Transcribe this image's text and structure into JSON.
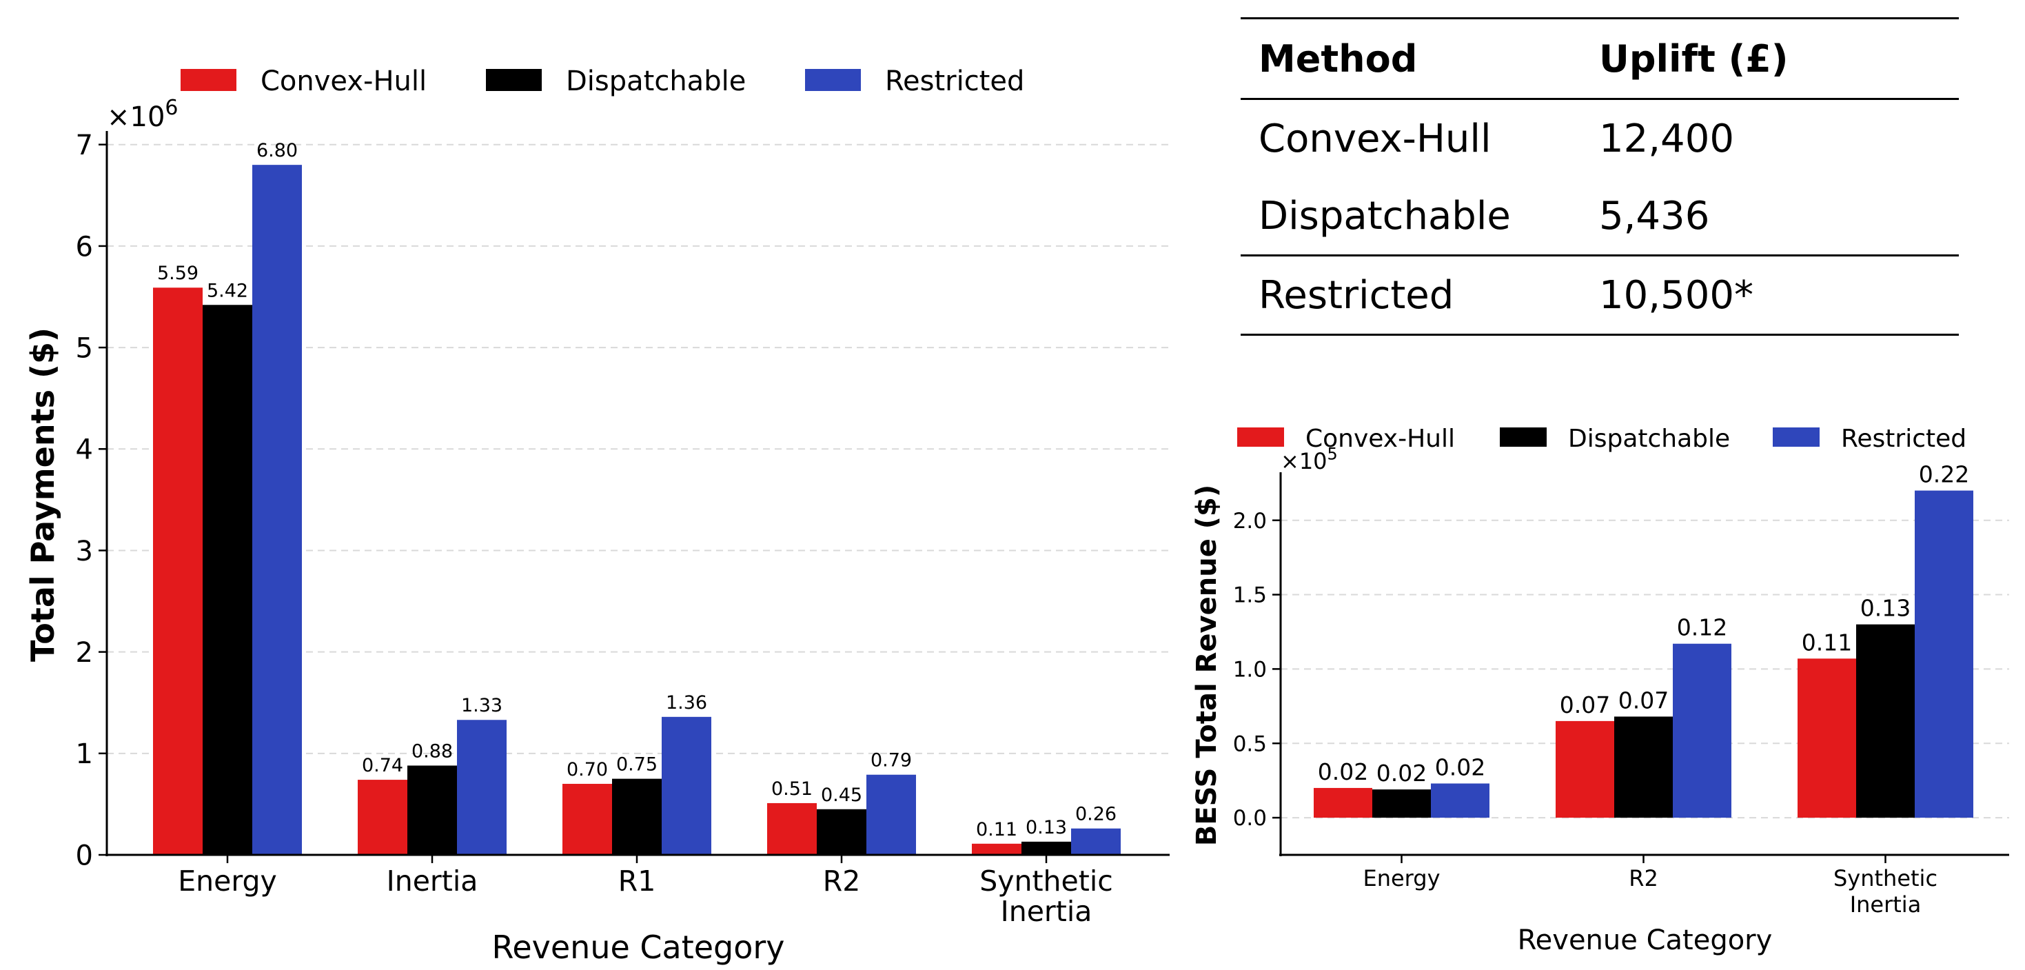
{
  "chart_data": [
    {
      "type": "bar",
      "categories": [
        "Energy",
        "Inertia",
        "R1",
        "R2",
        "Synthetic\nInertia"
      ],
      "series": [
        {
          "name": "Convex-Hull",
          "values": [
            5.59,
            0.74,
            0.7,
            0.51,
            0.11
          ]
        },
        {
          "name": "Dispatchable",
          "values": [
            5.42,
            0.88,
            0.75,
            0.45,
            0.13
          ]
        },
        {
          "name": "Restricted",
          "values": [
            6.8,
            1.33,
            1.36,
            0.79,
            0.26
          ]
        }
      ],
      "data_labels": [
        [
          "5.59",
          "0.74",
          "0.70",
          "0.51",
          "0.11"
        ],
        [
          "5.42",
          "0.88",
          "0.75",
          "0.45",
          "0.13"
        ],
        [
          "6.80",
          "1.33",
          "1.36",
          "0.79",
          "0.26"
        ]
      ],
      "xlabel": "Revenue Category",
      "ylabel": "Total Payments ($)",
      "ylim": [
        0,
        7.1
      ],
      "yticks": [
        "0",
        "1",
        "2",
        "3",
        "4",
        "5",
        "6",
        "7"
      ],
      "offset_label": "×10^6",
      "offset_base": "×10",
      "offset_exp": "6",
      "legend": "top",
      "grid": true
    },
    {
      "type": "bar",
      "categories": [
        "Energy",
        "R2",
        "Synthetic\nInertia"
      ],
      "series": [
        {
          "name": "Convex-Hull",
          "values": [
            0.2,
            0.65,
            1.07
          ]
        },
        {
          "name": "Dispatchable",
          "values": [
            0.19,
            0.68,
            1.3
          ]
        },
        {
          "name": "Restricted",
          "values": [
            0.23,
            1.17,
            2.2
          ]
        }
      ],
      "data_labels": [
        [
          "0.02",
          "0.07",
          "0.11"
        ],
        [
          "0.02",
          "0.07",
          "0.13"
        ],
        [
          "0.02",
          "0.12",
          "0.22"
        ]
      ],
      "xlabel": "Revenue Category",
      "ylabel": "BESS Total Revenue ($)",
      "ylim": [
        -0.25,
        2.3
      ],
      "yticks": [
        "0.0",
        "0.5",
        "1.0",
        "1.5",
        "2.0"
      ],
      "offset_label": "×10^5",
      "offset_base": "×10",
      "offset_exp": "5",
      "legend": "top",
      "grid": true
    }
  ],
  "colors": {
    "Convex-Hull": "#e31a1c",
    "Dispatchable": "#000000",
    "Restricted": "#2f46bb"
  },
  "table": {
    "headers": [
      "Method",
      "Uplift (£)"
    ],
    "rows": [
      [
        "Convex-Hull",
        "12,400"
      ],
      [
        "Dispatchable",
        "5,436"
      ],
      [
        "Restricted",
        "10,500*"
      ]
    ]
  }
}
